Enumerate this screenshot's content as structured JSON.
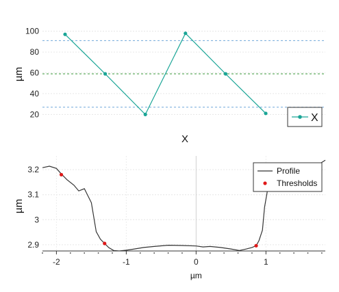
{
  "chart_data": [
    {
      "type": "line",
      "xlabel": "X",
      "ylabel": "µm",
      "ylim": [
        13,
        107
      ],
      "yticks": [
        20,
        40,
        60,
        80,
        100
      ],
      "grid": true,
      "legend_position": "bottom-right",
      "series": [
        {
          "name": "X",
          "color": "#1aa596",
          "x": [
            1,
            2,
            3,
            4,
            5,
            6
          ],
          "y": [
            97,
            59,
            20,
            98,
            59,
            21
          ]
        }
      ],
      "reference_lines": [
        {
          "y": 91,
          "color": "#6fa6d9",
          "style": "dashed"
        },
        {
          "y": 59,
          "color": "#3a9a3a",
          "style": "dashed"
        },
        {
          "y": 27,
          "color": "#6fa6d9",
          "style": "dashed"
        }
      ]
    },
    {
      "type": "line",
      "xlabel": "µm",
      "ylabel": "µm",
      "xlim": [
        -2.2,
        1.85
      ],
      "ylim": [
        2.875,
        3.255
      ],
      "xticks": [
        -2,
        -1,
        0,
        1
      ],
      "xtick_labels": [
        "-2",
        "-1",
        "0",
        "1"
      ],
      "yticks": [
        2.9,
        3,
        3.1,
        3.2
      ],
      "ytick_labels": [
        "2.9",
        "3",
        "3.1",
        "3.2"
      ],
      "grid": true,
      "legend_position": "top-right",
      "series": [
        {
          "name": "Profile",
          "color": "#333333",
          "x": [
            -2.2,
            -2.1,
            -2.0,
            -1.93,
            -1.85,
            -1.75,
            -1.68,
            -1.6,
            -1.5,
            -1.43,
            -1.37,
            -1.31,
            -1.25,
            -1.18,
            -1.1,
            -1.0,
            -0.9,
            -0.75,
            -0.6,
            -0.4,
            -0.2,
            0.0,
            0.1,
            0.2,
            0.35,
            0.5,
            0.62,
            0.72,
            0.8,
            0.86,
            0.9,
            0.95,
            0.98,
            1.03,
            1.1,
            1.2,
            1.35,
            1.5,
            1.62,
            1.72,
            1.85
          ],
          "y": [
            3.208,
            3.214,
            3.205,
            3.183,
            3.16,
            3.138,
            3.115,
            3.124,
            3.068,
            2.952,
            2.922,
            2.905,
            2.888,
            2.877,
            2.875,
            2.878,
            2.882,
            2.889,
            2.893,
            2.898,
            2.897,
            2.895,
            2.891,
            2.893,
            2.889,
            2.883,
            2.877,
            2.883,
            2.889,
            2.896,
            2.916,
            2.958,
            3.05,
            3.13,
            3.16,
            3.175,
            3.188,
            3.195,
            3.205,
            3.215,
            3.238
          ]
        },
        {
          "name": "Thresholds",
          "color": "#e01919",
          "x": [
            -1.93,
            -1.31,
            0.86
          ],
          "y": [
            3.18,
            2.905,
            2.896
          ]
        }
      ]
    }
  ]
}
